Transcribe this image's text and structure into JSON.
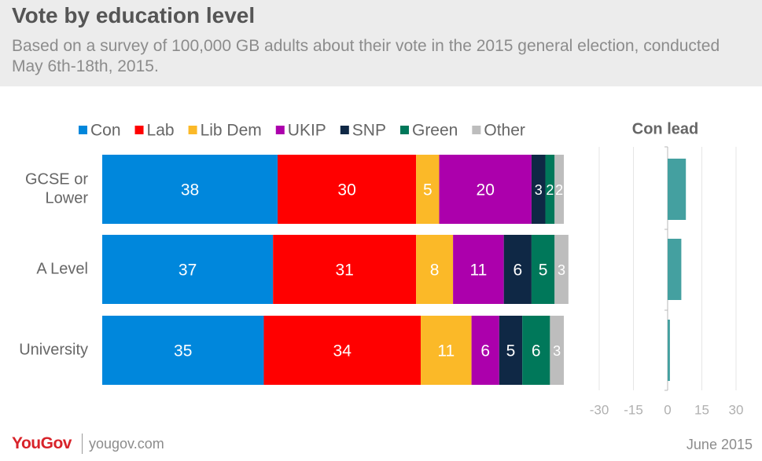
{
  "header": {
    "title": "Vote by education level",
    "subtitle": "Based on a survey of 100,000 GB adults about their vote in the 2015 general election, conducted May 6th-18th, 2015."
  },
  "footer": {
    "brand": "YouGov",
    "site": "yougov.com",
    "date": "June 2015"
  },
  "chart_data": [
    {
      "type": "bar",
      "orientation": "horizontal",
      "stacked": true,
      "categories": [
        "GCSE or Lower",
        "A Level",
        "University"
      ],
      "legend_position": "top",
      "series": [
        {
          "name": "Con",
          "color": "#0087dc",
          "values": [
            38,
            37,
            35
          ]
        },
        {
          "name": "Lab",
          "color": "#ff0000",
          "values": [
            30,
            31,
            34
          ]
        },
        {
          "name": "Lib Dem",
          "color": "#fbb928",
          "values": [
            5,
            8,
            11
          ]
        },
        {
          "name": "UKIP",
          "color": "#ac00ac",
          "values": [
            20,
            11,
            6
          ]
        },
        {
          "name": "SNP",
          "color": "#0f2845",
          "values": [
            3,
            6,
            5
          ]
        },
        {
          "name": "Green",
          "color": "#00785a",
          "values": [
            2,
            5,
            6
          ]
        },
        {
          "name": "Other",
          "color": "#bdbdbd",
          "values": [
            2,
            3,
            3
          ]
        }
      ],
      "data_label_colors": {
        "Con": "#ffffff",
        "Lab": "#ffffff",
        "Lib Dem": "#ffffff",
        "UKIP": "#ffffff",
        "SNP": "#ffffff",
        "Green": "#ffffff",
        "Other": "#ffffff"
      }
    },
    {
      "type": "bar",
      "orientation": "horizontal",
      "title": "Con lead",
      "categories": [
        "GCSE or Lower",
        "A Level",
        "University"
      ],
      "values": [
        8,
        6,
        1
      ],
      "color": "#44a0a0",
      "xlim": [
        -30,
        30
      ],
      "xticks": [
        -30,
        -15,
        0,
        15,
        30
      ],
      "grid": true
    }
  ]
}
